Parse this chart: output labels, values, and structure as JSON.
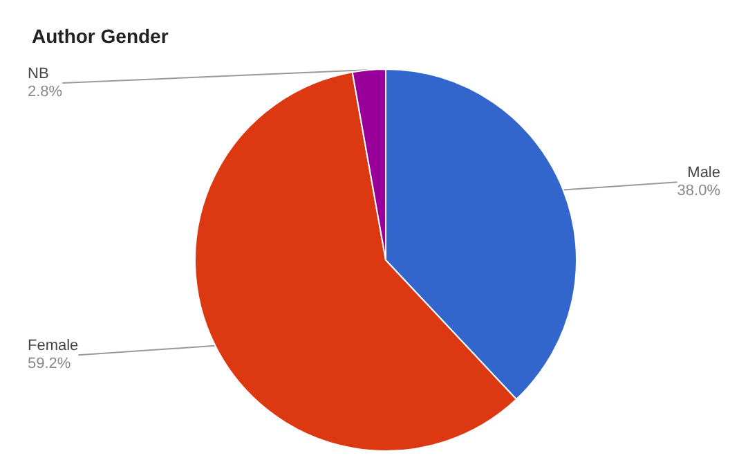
{
  "chart_data": {
    "type": "pie",
    "title": "Author Gender",
    "categories": [
      "Male",
      "Female",
      "NB"
    ],
    "values": [
      38.0,
      59.2,
      2.8
    ],
    "colors": [
      "#3366cc",
      "#dc3912",
      "#990099"
    ],
    "value_labels": [
      "38.0%",
      "59.2%",
      "2.8%"
    ],
    "legend": false
  }
}
